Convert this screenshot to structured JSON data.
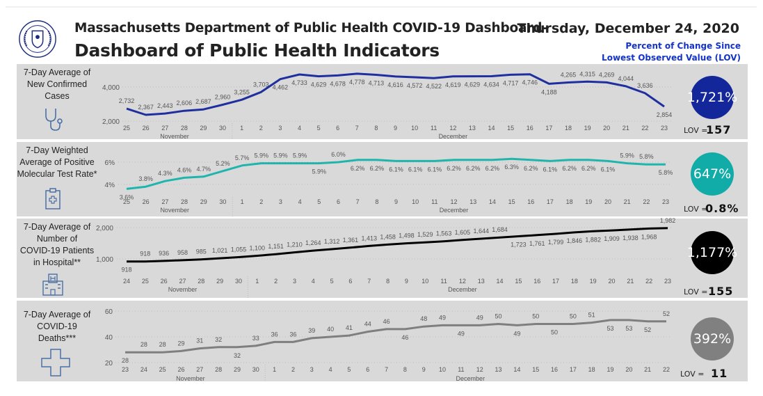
{
  "header": {
    "title_line1": "Massachusetts Department of Public Health COVID-19 Dashboard-",
    "title_line2": "Dashboard of Public Health Indicators",
    "date": "Thursday, December 24, 2020",
    "pct_change_line1": "Percent of Change Since",
    "pct_change_line2": "Lowest Observed Value (LOV)",
    "logo_text": "Commonwealth of Massachusetts Department of Public Health"
  },
  "panels": [
    {
      "label": [
        "7-Day Average of",
        "New Confirmed",
        "Cases"
      ],
      "icon": "stethoscope-icon",
      "percent": "1,721%",
      "lov_label": "LOV =",
      "lov_value": "157",
      "color": "#13279a"
    },
    {
      "label": [
        "7-Day Weighted",
        "Average of Positive",
        "Molecular Test Rate*"
      ],
      "icon": "clipboard-icon",
      "percent": "647%",
      "lov_label": "LOV =",
      "lov_value": "0.8%",
      "color": "#12aca8"
    },
    {
      "label": [
        "7-Day Average of",
        "Number of",
        "COVID-19 Patients",
        "in Hospital**"
      ],
      "icon": "hospital-icon",
      "percent": "1,177%",
      "lov_label": "LOV =",
      "lov_value": "155",
      "color": "#000000"
    },
    {
      "label": [
        "7-Day Average of",
        "COVID-19",
        "Deaths***"
      ],
      "icon": "cross-icon",
      "percent": "392%",
      "lov_label": "LOV =",
      "lov_value": "11",
      "color": "#808080"
    }
  ],
  "chart_data": [
    {
      "type": "line",
      "title": "7-Day Average of New Confirmed Cases",
      "categories": [
        "25",
        "26",
        "27",
        "28",
        "29",
        "30",
        "1",
        "2",
        "3",
        "4",
        "5",
        "6",
        "7",
        "8",
        "9",
        "10",
        "11",
        "12",
        "13",
        "14",
        "15",
        "16",
        "17",
        "18",
        "19",
        "20",
        "21",
        "22",
        "23"
      ],
      "months": [
        {
          "name": "November",
          "count": 6
        },
        {
          "name": "December",
          "count": 23
        }
      ],
      "values": [
        2732,
        2367,
        2443,
        2606,
        2687,
        2960,
        3255,
        3703,
        4462,
        4733,
        4629,
        4678,
        4778,
        4713,
        4616,
        4572,
        4522,
        4619,
        4629,
        4634,
        4717,
        4746,
        4188,
        4265,
        4315,
        4269,
        4044,
        3636,
        2854
      ],
      "yticks": [
        2000,
        4000
      ],
      "ytick_labels": [
        "2,000",
        "4,000"
      ],
      "format": "thousands",
      "color": "#1f2f9e",
      "grid": true
    },
    {
      "type": "line",
      "title": "7-Day Weighted Average of Positive Molecular Test Rate*",
      "categories": [
        "25",
        "26",
        "27",
        "28",
        "29",
        "30",
        "1",
        "2",
        "3",
        "4",
        "5",
        "6",
        "7",
        "8",
        "9",
        "10",
        "11",
        "12",
        "13",
        "14",
        "15",
        "16",
        "17",
        "18",
        "19",
        "20",
        "21",
        "22",
        "23"
      ],
      "months": [
        {
          "name": "November",
          "count": 6
        },
        {
          "name": "December",
          "count": 23
        }
      ],
      "values": [
        3.6,
        3.8,
        4.3,
        4.6,
        4.7,
        5.2,
        5.7,
        5.9,
        5.9,
        5.9,
        5.9,
        6.0,
        6.2,
        6.2,
        6.1,
        6.1,
        6.1,
        6.2,
        6.2,
        6.2,
        6.3,
        6.2,
        6.1,
        6.2,
        6.2,
        6.1,
        5.9,
        5.8,
        5.8
      ],
      "yticks": [
        4,
        6
      ],
      "ytick_labels": [
        "4%",
        "6%"
      ],
      "format": "percent1",
      "color": "#1fb5ad",
      "grid": true
    },
    {
      "type": "line",
      "title": "7-Day Average of Number of COVID-19 Patients in Hospital**",
      "categories": [
        "24",
        "25",
        "26",
        "27",
        "28",
        "29",
        "30",
        "1",
        "2",
        "3",
        "4",
        "5",
        "6",
        "7",
        "8",
        "9",
        "10",
        "11",
        "12",
        "13",
        "14",
        "15",
        "16",
        "17",
        "18",
        "19",
        "20",
        "21",
        "22",
        "23"
      ],
      "months": [
        {
          "name": "November",
          "count": 7
        },
        {
          "name": "December",
          "count": 23
        }
      ],
      "values": [
        918,
        918,
        936,
        958,
        985,
        1021,
        1055,
        1100,
        1151,
        1210,
        1264,
        1312,
        1361,
        1413,
        1458,
        1498,
        1529,
        1563,
        1605,
        1644,
        1684,
        1723,
        1761,
        1799,
        1846,
        1882,
        1909,
        1938,
        1968,
        1982
      ],
      "yticks": [
        1000,
        2000
      ],
      "ytick_labels": [
        "1,000",
        "2,000"
      ],
      "format": "thousands",
      "color": "#000000",
      "grid": true
    },
    {
      "type": "line",
      "title": "7-Day Average of COVID-19 Deaths***",
      "categories": [
        "23",
        "24",
        "25",
        "26",
        "27",
        "28",
        "29",
        "30",
        "1",
        "2",
        "3",
        "4",
        "5",
        "6",
        "7",
        "8",
        "9",
        "10",
        "11",
        "12",
        "13",
        "14",
        "15",
        "16",
        "17",
        "18",
        "19",
        "20",
        "21",
        "22"
      ],
      "months": [
        {
          "name": "November",
          "count": 8
        },
        {
          "name": "December",
          "count": 22
        }
      ],
      "values": [
        28,
        28,
        28,
        29,
        31,
        32,
        32,
        33,
        36,
        36,
        39,
        40,
        41,
        44,
        46,
        46,
        48,
        49,
        49,
        49,
        50,
        49,
        50,
        50,
        50,
        51,
        53,
        53,
        52,
        52
      ],
      "yticks": [
        20,
        40,
        60
      ],
      "ytick_labels": [
        "20",
        "40",
        "60"
      ],
      "format": "integer",
      "color": "#7f7f7f",
      "grid": true
    }
  ]
}
